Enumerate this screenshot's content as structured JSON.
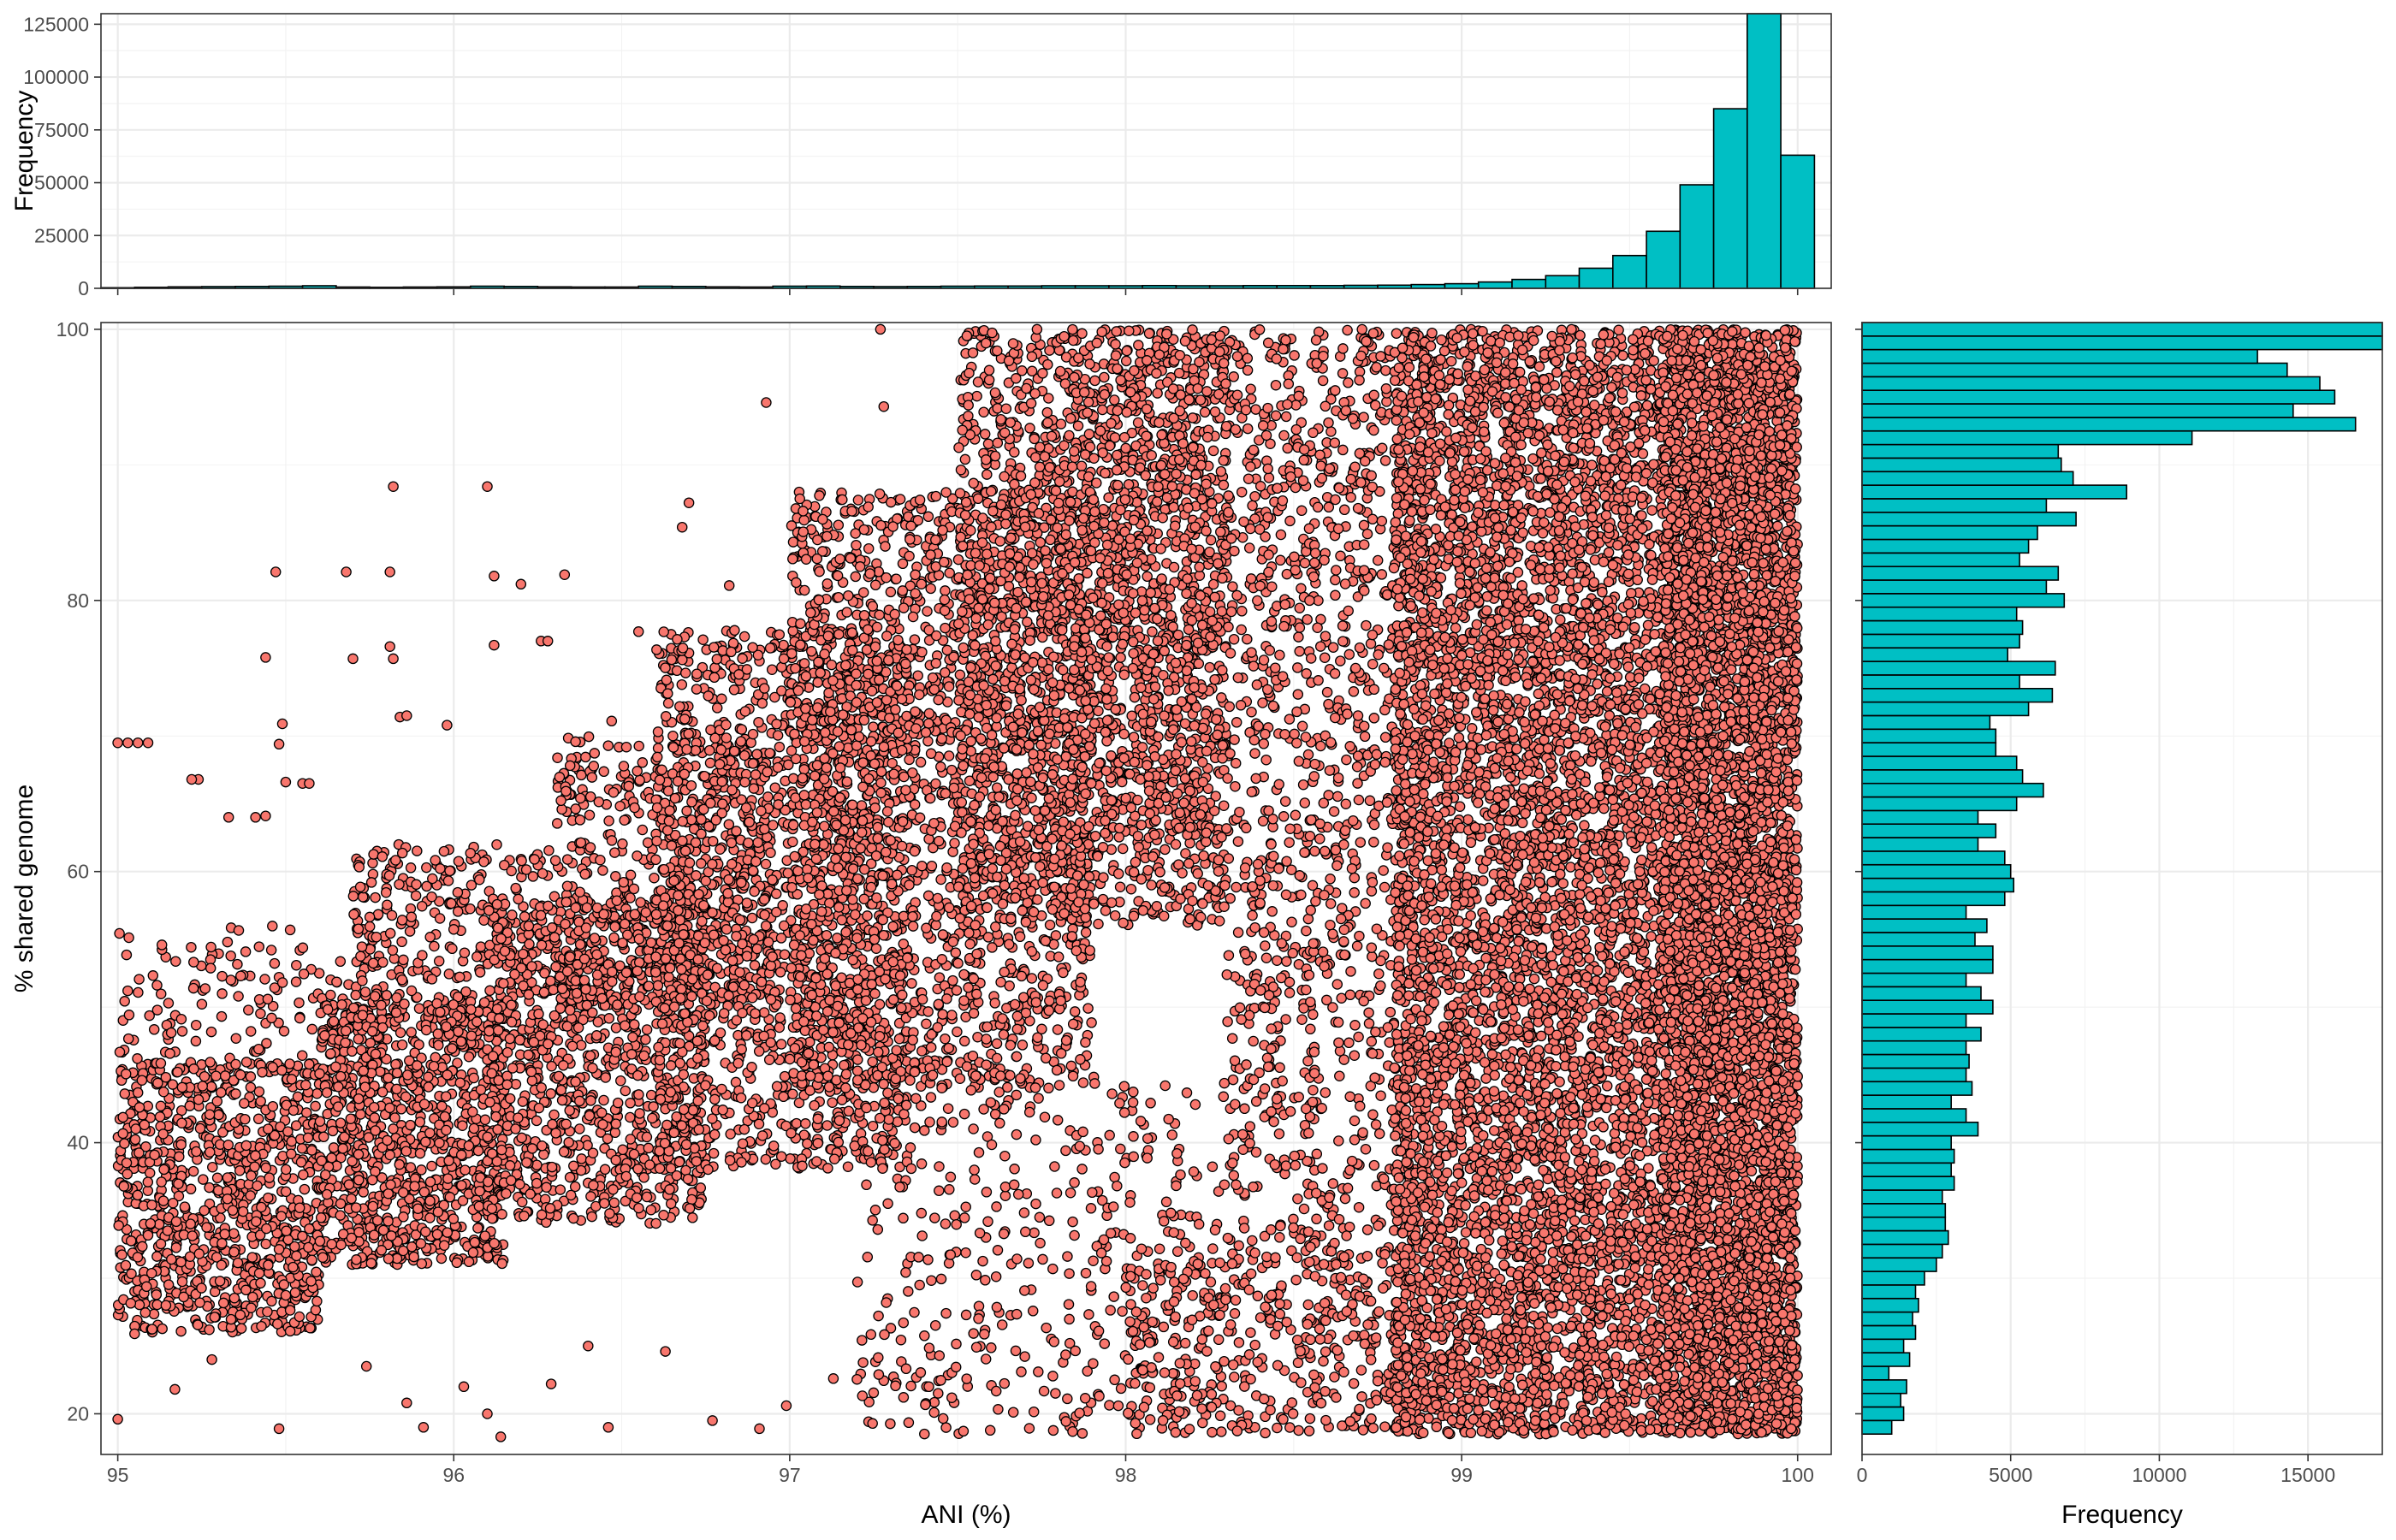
{
  "chart_data": [
    {
      "id": "main",
      "type": "scatter",
      "xlabel": "ANI (%)",
      "ylabel": "% shared genome",
      "xlim": [
        94.95,
        100.1
      ],
      "ylim": [
        17.0,
        100.5
      ],
      "xticks": [
        95,
        96,
        97,
        98,
        99,
        100
      ],
      "yticks": [
        20,
        40,
        60,
        80,
        100
      ],
      "grid": true,
      "point_color": "#F8766D",
      "point_stroke": "#000000",
      "outlier_points": [
        [
          95.0,
          69.5
        ],
        [
          95.03,
          69.5
        ],
        [
          95.06,
          69.5
        ],
        [
          95.09,
          69.5
        ],
        [
          95.0,
          19.6
        ],
        [
          95.47,
          82.1
        ],
        [
          95.44,
          75.8
        ],
        [
          95.49,
          70.9
        ],
        [
          95.48,
          69.4
        ],
        [
          95.5,
          66.6
        ],
        [
          95.55,
          66.5
        ],
        [
          95.57,
          66.5
        ],
        [
          95.24,
          66.8
        ],
        [
          95.22,
          66.8
        ],
        [
          95.33,
          64.0
        ],
        [
          95.41,
          64.0
        ],
        [
          95.44,
          64.1
        ],
        [
          95.68,
          82.1
        ],
        [
          95.7,
          75.7
        ],
        [
          95.82,
          88.4
        ],
        [
          95.81,
          82.1
        ],
        [
          95.81,
          76.6
        ],
        [
          95.82,
          75.7
        ],
        [
          95.84,
          71.4
        ],
        [
          95.86,
          71.5
        ],
        [
          96.1,
          88.4
        ],
        [
          96.12,
          81.8
        ],
        [
          96.2,
          81.2
        ],
        [
          96.33,
          81.9
        ],
        [
          96.12,
          76.7
        ],
        [
          95.98,
          70.8
        ],
        [
          96.47,
          71.1
        ],
        [
          96.55,
          77.7
        ],
        [
          96.26,
          77.0
        ],
        [
          96.28,
          77.0
        ],
        [
          96.93,
          94.6
        ],
        [
          97.27,
          100.0
        ],
        [
          97.28,
          94.3
        ],
        [
          97.03,
          87.5
        ],
        [
          96.7,
          87.2
        ],
        [
          96.68,
          85.4
        ],
        [
          96.82,
          81.1
        ],
        [
          95.48,
          18.9
        ],
        [
          95.05,
          25.9
        ],
        [
          95.17,
          21.8
        ],
        [
          95.28,
          24.0
        ],
        [
          95.74,
          23.5
        ],
        [
          95.86,
          20.8
        ],
        [
          95.91,
          19.0
        ],
        [
          96.03,
          22.0
        ],
        [
          96.1,
          20.0
        ],
        [
          96.14,
          18.3
        ],
        [
          96.29,
          22.2
        ],
        [
          96.4,
          25.0
        ],
        [
          96.46,
          19.0
        ],
        [
          96.63,
          24.6
        ],
        [
          96.77,
          19.5
        ],
        [
          96.91,
          18.9
        ],
        [
          96.99,
          20.6
        ],
        [
          97.13,
          22.6
        ]
      ],
      "dense_regions": [
        {
          "x": [
            95.0,
            95.6
          ],
          "y": [
            26,
            46
          ],
          "n": 900
        },
        {
          "x": [
            95.0,
            95.8
          ],
          "y": [
            45,
            56
          ],
          "n": 160
        },
        {
          "x": [
            95.6,
            96.15
          ],
          "y": [
            31,
            51
          ],
          "n": 950
        },
        {
          "x": [
            95.7,
            96.4
          ],
          "y": [
            48,
            62
          ],
          "n": 320
        },
        {
          "x": [
            96.1,
            96.75
          ],
          "y": [
            34,
            58
          ],
          "n": 1000
        },
        {
          "x": [
            96.3,
            96.95
          ],
          "y": [
            50,
            70
          ],
          "n": 500
        },
        {
          "x": [
            96.6,
            97.35
          ],
          "y": [
            38,
            78
          ],
          "n": 1400
        },
        {
          "x": [
            97.0,
            97.9
          ],
          "y": [
            44,
            88
          ],
          "n": 1900
        },
        {
          "x": [
            97.5,
            98.3
          ],
          "y": [
            56,
            100
          ],
          "n": 1700
        },
        {
          "x": [
            97.8,
            98.9
          ],
          "y": [
            62,
            100
          ],
          "n": 1400
        },
        {
          "x": [
            98.3,
            98.9
          ],
          "y": [
            32,
            62
          ],
          "n": 500
        },
        {
          "x": [
            98.0,
            98.9
          ],
          "y": [
            18.5,
            32
          ],
          "n": 450
        },
        {
          "x": [
            97.2,
            98.3
          ],
          "y": [
            18.5,
            45
          ],
          "n": 420
        },
        {
          "x": [
            98.8,
            100.0
          ],
          "y": [
            18.5,
            100
          ],
          "n": 9000
        },
        {
          "x": [
            99.6,
            100.0
          ],
          "y": [
            18.5,
            100
          ],
          "n": 3000
        }
      ]
    },
    {
      "id": "top-hist",
      "type": "bar",
      "xlabel": "",
      "ylabel": "Frequency",
      "ylim": [
        0,
        130000
      ],
      "yticks": [
        0,
        25000,
        50000,
        75000,
        100000,
        125000
      ],
      "ytick_labels": [
        "0",
        "25000",
        "50000",
        "75000",
        "100000",
        "125000"
      ],
      "bar_color": "#00BFC4",
      "bin_width": 0.1,
      "bin_centers": [
        95.0,
        95.1,
        95.2,
        95.3,
        95.4,
        95.5,
        95.6,
        95.7,
        95.8,
        95.9,
        96.0,
        96.1,
        96.2,
        96.3,
        96.4,
        96.5,
        96.6,
        96.7,
        96.8,
        96.9,
        97.0,
        97.1,
        97.2,
        97.3,
        97.4,
        97.5,
        97.6,
        97.7,
        97.8,
        97.9,
        98.0,
        98.1,
        98.2,
        98.3,
        98.4,
        98.5,
        98.6,
        98.7,
        98.8,
        98.9,
        99.0,
        99.1,
        99.2,
        99.3,
        99.4,
        99.5,
        99.6,
        99.7,
        99.8,
        99.9,
        100.0
      ],
      "values": [
        300,
        500,
        700,
        800,
        900,
        1000,
        1200,
        600,
        500,
        600,
        700,
        1000,
        900,
        700,
        600,
        600,
        1000,
        900,
        700,
        600,
        1000,
        1100,
        900,
        800,
        900,
        1000,
        1100,
        1100,
        1200,
        1200,
        1200,
        1300,
        1200,
        1200,
        1300,
        1300,
        1300,
        1400,
        1500,
        1800,
        2200,
        3000,
        4200,
        6000,
        9500,
        15500,
        27000,
        49000,
        85000,
        130000,
        63000
      ]
    },
    {
      "id": "right-hist",
      "type": "bar",
      "orientation": "horizontal",
      "xlabel": "Frequency",
      "ylabel": "",
      "xlim": [
        0,
        17500
      ],
      "xticks": [
        0,
        5000,
        10000,
        15000
      ],
      "bar_color": "#00BFC4",
      "bin_width": 1.0,
      "bin_centers": [
        19,
        20,
        21,
        22,
        23,
        24,
        25,
        26,
        27,
        28,
        29,
        30,
        31,
        32,
        33,
        34,
        35,
        36,
        37,
        38,
        39,
        40,
        41,
        42,
        43,
        44,
        45,
        46,
        47,
        48,
        49,
        50,
        51,
        52,
        53,
        54,
        55,
        56,
        57,
        58,
        59,
        60,
        61,
        62,
        63,
        64,
        65,
        66,
        67,
        68,
        69,
        70,
        71,
        72,
        73,
        74,
        75,
        76,
        77,
        78,
        79,
        80,
        81,
        82,
        83,
        84,
        85,
        86,
        87,
        88,
        89,
        90,
        91,
        92,
        93,
        94,
        95,
        96,
        97,
        98,
        99,
        100
      ],
      "values": [
        1000,
        1400,
        1300,
        1500,
        900,
        1600,
        1400,
        1800,
        1700,
        1900,
        1800,
        2100,
        2500,
        2700,
        2900,
        2800,
        2800,
        2700,
        3100,
        3000,
        3100,
        3000,
        3900,
        3500,
        3000,
        3700,
        3500,
        3600,
        3500,
        4000,
        3500,
        4400,
        4000,
        3500,
        4400,
        4400,
        3800,
        4200,
        3500,
        4800,
        5100,
        5000,
        4800,
        3900,
        4500,
        3900,
        5200,
        6100,
        5400,
        5200,
        4500,
        4500,
        4300,
        5600,
        6400,
        5300,
        6500,
        4900,
        5300,
        5400,
        5200,
        6800,
        6200,
        6600,
        5300,
        5600,
        5900,
        7200,
        6200,
        8900,
        7100,
        6700,
        6600,
        11100,
        16600,
        14500,
        15900,
        15400,
        14300,
        13300,
        17500,
        17500
      ]
    }
  ]
}
